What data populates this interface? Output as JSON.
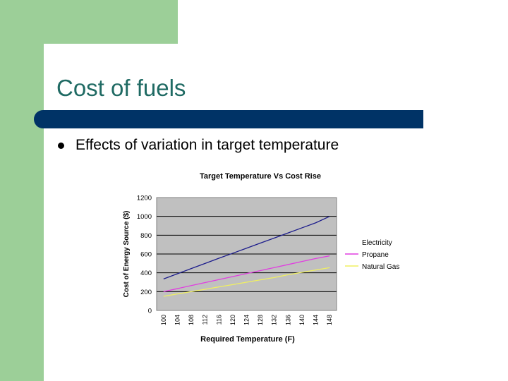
{
  "slide": {
    "title": "Cost of fuels",
    "bullet": "Effects of variation in target temperature"
  },
  "colors": {
    "sidebar": "#9ccf98",
    "title_text": "#1f6a63",
    "title_bar": "#003366",
    "plot_bg": "#c0c0c0"
  },
  "chart_data": {
    "type": "line",
    "title": "Target Temperature Vs Cost Rise",
    "xlabel": "Required Temperature (F)",
    "ylabel": "Cost of Energy Source ($)",
    "categories": [
      "100",
      "104",
      "108",
      "112",
      "116",
      "120",
      "124",
      "128",
      "132",
      "136",
      "140",
      "144",
      "148"
    ],
    "ylim": [
      0,
      1200
    ],
    "yticks": [
      0,
      200,
      400,
      600,
      800,
      1000,
      1200
    ],
    "grid": "horizontal",
    "legend_position": "right",
    "series": [
      {
        "name": "Electricity",
        "color": "#1c1c8c",
        "values": [
          335,
          390,
          445,
          500,
          555,
          608,
          662,
          716,
          770,
          824,
          878,
          932,
          1000
        ]
      },
      {
        "name": "Propane",
        "color": "#e03ee0",
        "values": [
          200,
          232,
          264,
          296,
          328,
          360,
          392,
          424,
          456,
          488,
          520,
          552,
          580
        ]
      },
      {
        "name": "Natural Gas",
        "color": "#f0f060",
        "values": [
          150,
          175,
          200,
          225,
          250,
          275,
          300,
          325,
          350,
          380,
          405,
          430,
          455
        ]
      }
    ]
  }
}
